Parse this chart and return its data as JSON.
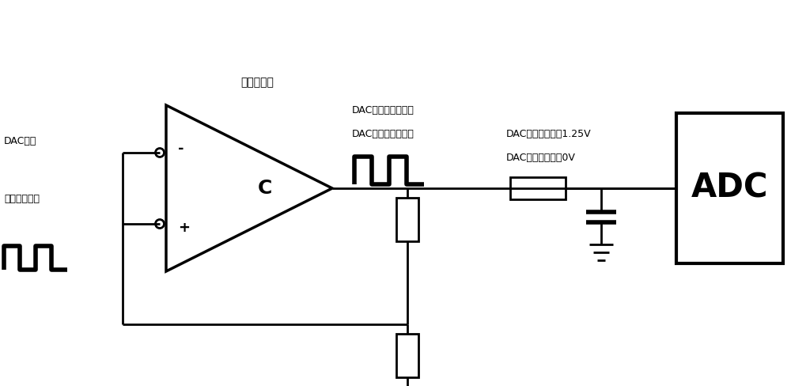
{
  "bg_color": "#ffffff",
  "line_color": "#000000",
  "line_width": 2.0,
  "text_label_dac_out": "DAC输出",
  "text_label_signal_in": "待测信号输入",
  "text_comparator": "高速比较器",
  "text_c": "C",
  "text_minus": "-",
  "text_plus": "+",
  "text_adc": "ADC",
  "text_high1": "DAC输出过高：常低",
  "text_low1": "DAC输出过低：脉冲",
  "text_high2": "DAC输出过高：约1.25V",
  "text_low2": "DAC输出过低：约0V",
  "font_size_label": 9,
  "font_size_adc": 30,
  "font_size_comp": 10,
  "font_size_annotation": 9,
  "font_size_pm": 13,
  "font_size_c": 18
}
